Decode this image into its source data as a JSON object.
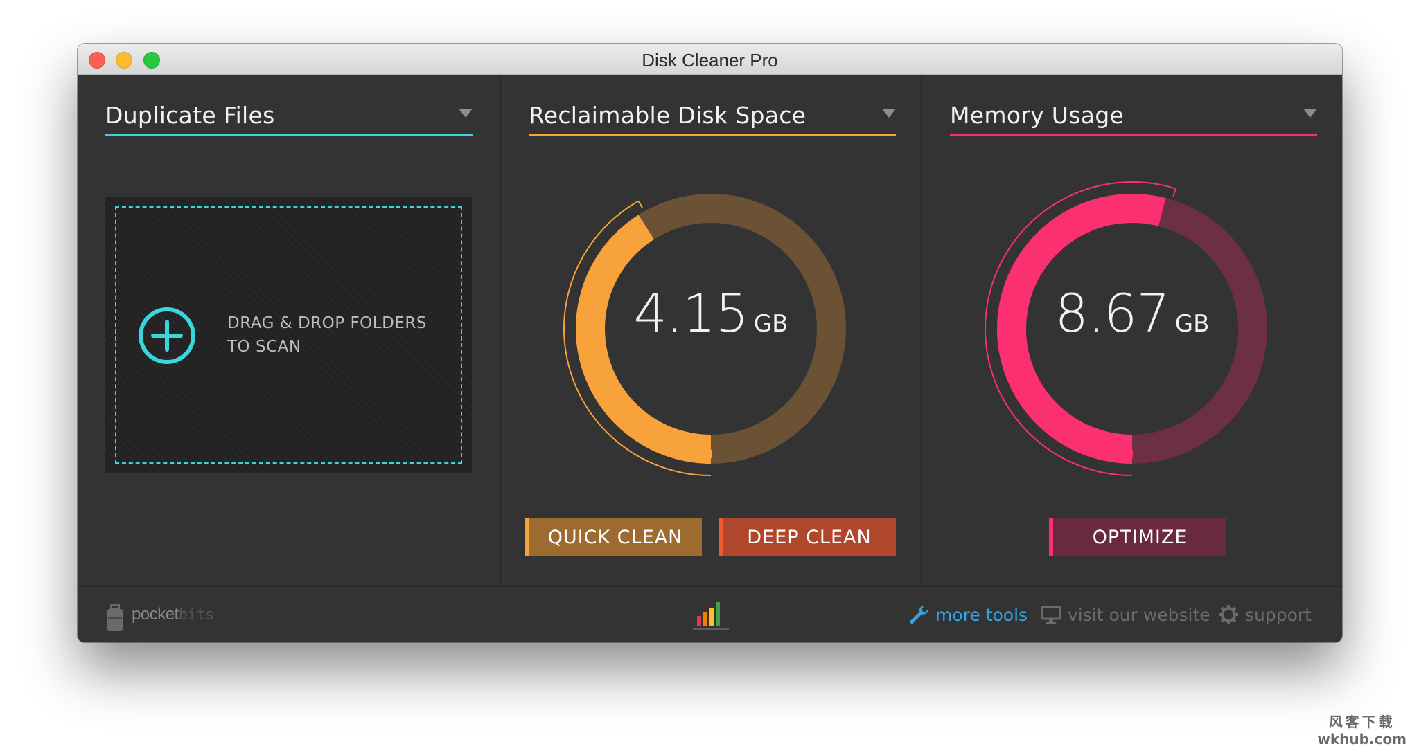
{
  "window": {
    "title": "Disk Cleaner Pro"
  },
  "panels": {
    "duplicate_files": {
      "title": "Duplicate Files",
      "accent_color": "#3ad6dc",
      "drop_text_line1": "DRAG & DROP FOLDERS",
      "drop_text_line2": "TO SCAN"
    },
    "reclaimable": {
      "title": "Reclaimable Disk Space",
      "accent_color": "#f7a23b",
      "value": "4.15",
      "unit": "GB",
      "gauge_fraction": 0.41,
      "quick_clean_label": "QUICK CLEAN",
      "deep_clean_label": "DEEP CLEAN"
    },
    "memory": {
      "title": "Memory Usage",
      "accent_color": "#fb3070",
      "value": "8.67",
      "unit": "GB",
      "gauge_fraction": 0.54,
      "optimize_label": "OPTIMIZE"
    }
  },
  "footer": {
    "brand": "pocket",
    "brand_suffix": "bits",
    "more_tools": "more tools",
    "visit_website": "visit our website",
    "support": "support"
  },
  "watermark": {
    "line1": "风客下载",
    "line2": "wkhub.com"
  }
}
